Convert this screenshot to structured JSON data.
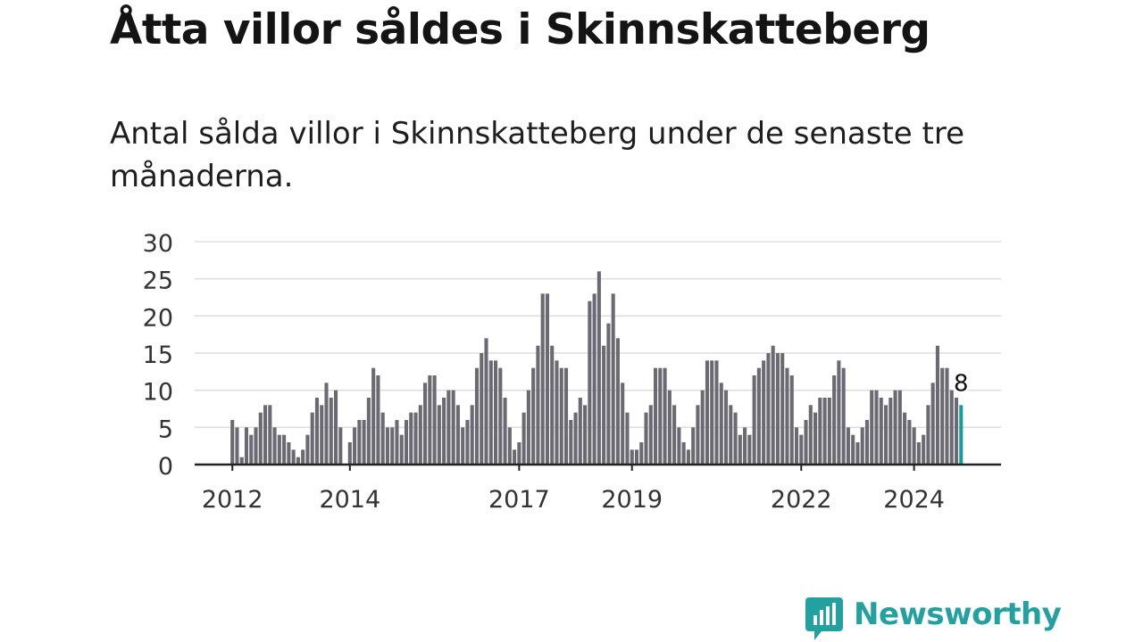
{
  "title": "Åtta villor såldes i Skinnskatteberg",
  "subtitle": "Antal sålda villor i Skinnskatteberg under de senaste tre månaderna.",
  "brand": "Newsworthy",
  "colors": {
    "bar": "#6b6a72",
    "highlight": "#1a9c9c",
    "grid": "#dedede",
    "axis": "#222222",
    "brand": "#23a0a0"
  },
  "chart_data": {
    "type": "bar",
    "ylim": [
      0,
      30
    ],
    "y_ticks": [
      "0",
      "5",
      "10",
      "15",
      "20",
      "25",
      "30"
    ],
    "x_ticks": [
      {
        "label": "2012",
        "index": 0
      },
      {
        "label": "2014",
        "index": 25
      },
      {
        "label": "2017",
        "index": 61
      },
      {
        "label": "2019",
        "index": 85
      },
      {
        "label": "2022",
        "index": 121
      },
      {
        "label": "2024",
        "index": 145
      }
    ],
    "values": [
      6,
      5,
      1,
      5,
      4,
      5,
      7,
      8,
      8,
      5,
      4,
      4,
      3,
      2,
      1,
      2,
      4,
      7,
      9,
      8,
      11,
      9,
      10,
      5,
      0,
      3,
      5,
      6,
      6,
      9,
      13,
      12,
      7,
      5,
      5,
      6,
      4,
      6,
      7,
      7,
      8,
      11,
      12,
      12,
      8,
      9,
      10,
      10,
      8,
      5,
      6,
      8,
      13,
      15,
      17,
      14,
      14,
      13,
      9,
      5,
      2,
      3,
      7,
      10,
      13,
      16,
      23,
      23,
      16,
      14,
      13,
      13,
      6,
      7,
      9,
      8,
      22,
      23,
      26,
      16,
      19,
      23,
      17,
      11,
      7,
      2,
      2,
      3,
      7,
      8,
      13,
      13,
      13,
      10,
      8,
      5,
      3,
      2,
      5,
      8,
      10,
      14,
      14,
      14,
      11,
      10,
      8,
      7,
      4,
      5,
      4,
      12,
      13,
      14,
      15,
      16,
      15,
      15,
      13,
      12,
      5,
      4,
      6,
      8,
      7,
      9,
      9,
      9,
      12,
      14,
      13,
      5,
      4,
      3,
      5,
      6,
      10,
      10,
      9,
      8,
      9,
      10,
      10,
      7,
      6,
      5,
      3,
      4,
      8,
      11,
      16,
      13,
      13,
      10,
      9,
      8
    ],
    "highlight_index": 155,
    "highlight_label": "8"
  }
}
